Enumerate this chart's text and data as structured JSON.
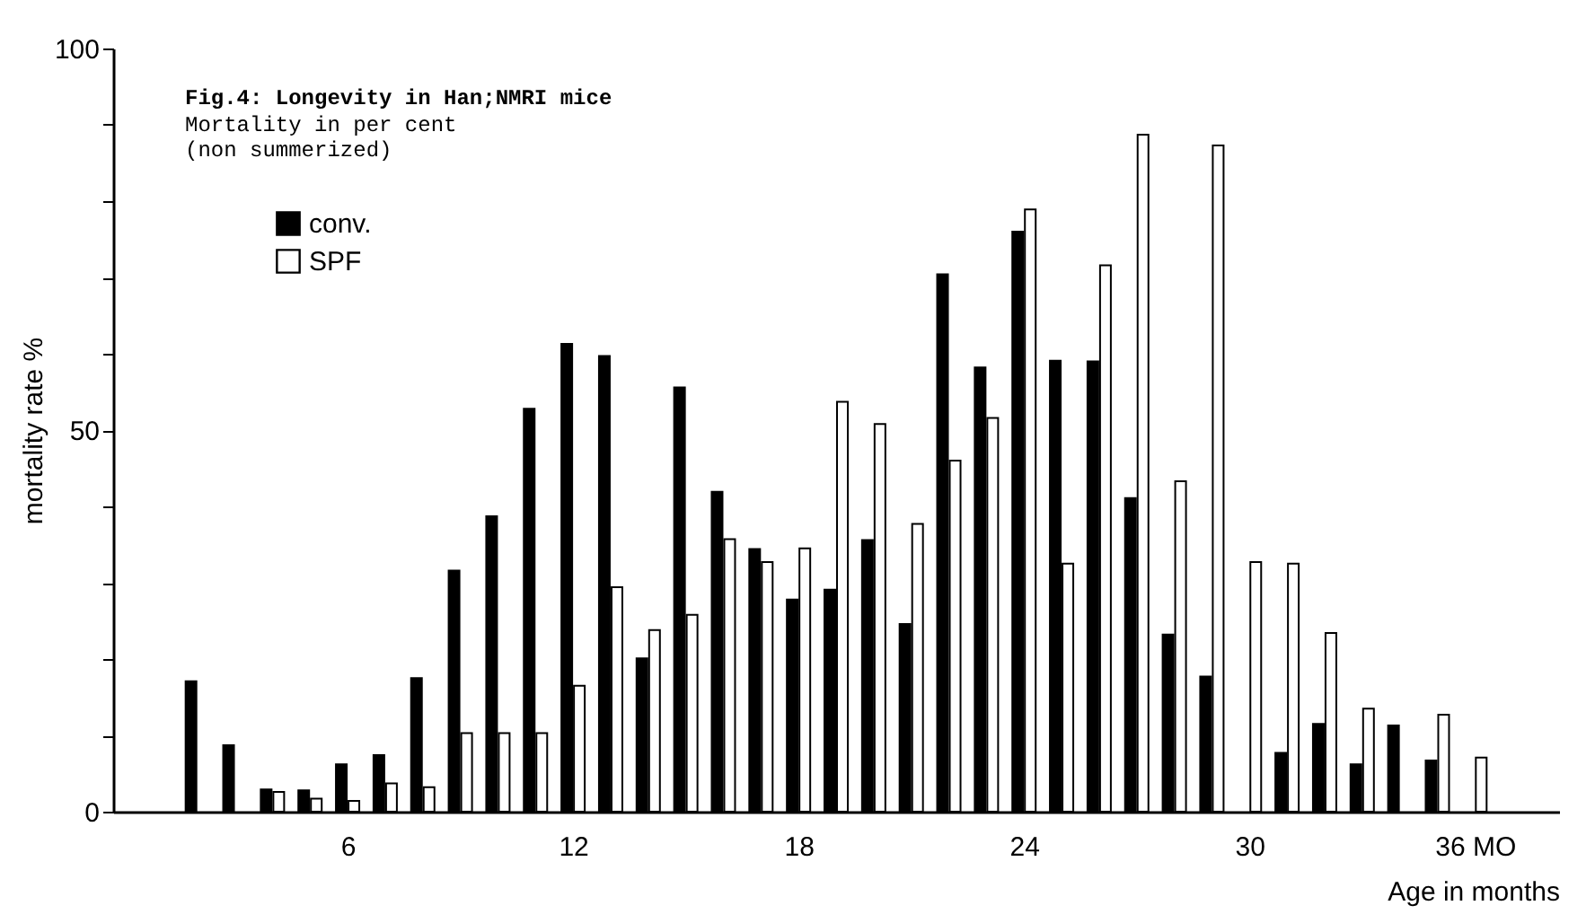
{
  "chart_data": {
    "type": "bar",
    "title": "Fig.4: Longevity in Han;NMRI mice",
    "subtitle": "Mortality in per cent\n(non summerized)",
    "xlabel": "Age in months",
    "ylabel": "mortality rate %",
    "x": [
      2,
      3,
      4,
      5,
      6,
      7,
      8,
      9,
      10,
      11,
      12,
      13,
      14,
      15,
      16,
      17,
      18,
      19,
      20,
      21,
      22,
      23,
      24,
      25,
      26,
      27,
      28,
      29,
      30,
      31,
      32,
      33,
      34,
      35,
      36
    ],
    "series": [
      {
        "name": "conv.",
        "color": "#000000",
        "values": [
          17.1,
          8.7,
          2.9,
          2.8,
          6.2,
          7.4,
          17.5,
          31.6,
          38.7,
          52.8,
          61.3,
          59.7,
          20.1,
          55.6,
          41.9,
          34.4,
          27.8,
          29.1,
          35.6,
          24.6,
          70.4,
          58.2,
          76.0,
          59.1,
          59.0,
          41.1,
          23.2,
          17.7,
          null,
          7.7,
          11.5,
          6.2,
          11.3,
          6.7,
          null
        ]
      },
      {
        "name": "SPF",
        "color": "#ffffff",
        "values": [
          null,
          null,
          2.6,
          1.7,
          1.4,
          3.7,
          3.2,
          10.3,
          10.3,
          10.3,
          16.5,
          29.4,
          23.8,
          25.8,
          35.7,
          32.7,
          34.5,
          53.7,
          50.8,
          37.7,
          46.0,
          51.6,
          78.9,
          32.5,
          71.6,
          88.7,
          43.3,
          87.3,
          32.7,
          32.5,
          23.4,
          13.5,
          null,
          12.7,
          7.1
        ]
      }
    ],
    "xlim": [
      0,
      38
    ],
    "xticks": [
      6,
      12,
      18,
      24,
      30,
      {
        "value": 36,
        "label": "36 MO"
      }
    ],
    "ylim": [
      0,
      100
    ],
    "yticks": [
      0,
      {
        "value": 10,
        "label": null
      },
      {
        "value": 20,
        "label": null
      },
      {
        "value": 30,
        "label": null
      },
      {
        "value": 40,
        "label": null
      },
      50,
      {
        "value": 60,
        "label": null
      },
      {
        "value": 70,
        "label": null
      },
      {
        "value": 80,
        "label": null
      },
      {
        "value": 90,
        "label": null
      },
      100
    ],
    "grid": false,
    "legend": "top left"
  }
}
